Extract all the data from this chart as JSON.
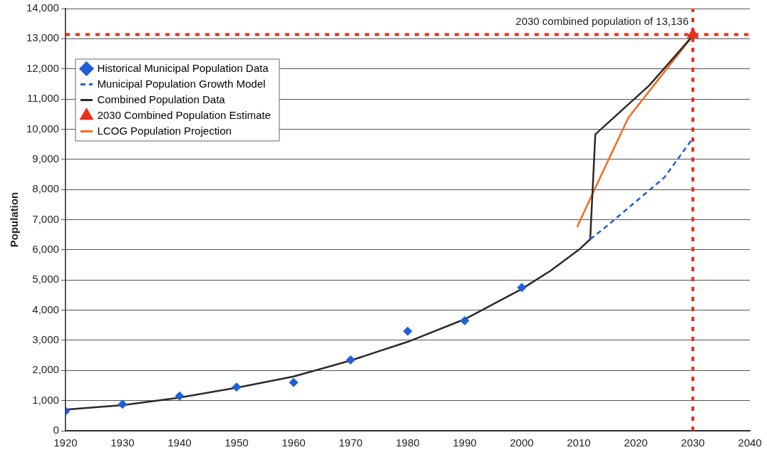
{
  "chart_data": {
    "type": "line",
    "ylabel": "Population",
    "xlim": [
      1920,
      2040
    ],
    "xticks": [
      1920,
      1930,
      1940,
      1950,
      1960,
      1970,
      1980,
      1990,
      2000,
      2010,
      2020,
      2030,
      2040
    ],
    "ylim": [
      0,
      14000
    ],
    "yticks": [
      0,
      {
        "value": 1000,
        "label": "1,000"
      },
      {
        "value": 2000,
        "label": "2,000"
      },
      {
        "value": 3000,
        "label": "3,000"
      },
      {
        "value": 4000,
        "label": "4,000"
      },
      {
        "value": 5000,
        "label": "5,000"
      },
      {
        "value": 6000,
        "label": "6,000"
      },
      {
        "value": 7000,
        "label": "7,000"
      },
      {
        "value": 8000,
        "label": "8,000"
      },
      {
        "value": 9000,
        "label": "9,000"
      },
      {
        "value": 10000,
        "label": "10,000"
      },
      {
        "value": 11000,
        "label": "11,000"
      },
      {
        "value": 12000,
        "label": "12,000"
      },
      {
        "value": 13000,
        "label": "13,000"
      },
      {
        "value": 14000,
        "label": "14,000"
      }
    ],
    "grid": "y",
    "legend": "top left",
    "series": [
      {
        "name": "Historical Municipal Population Data",
        "type": "scatter",
        "marker": "diamond",
        "color": "#1f5fd8",
        "x": [
          1920,
          1930,
          1940,
          1950,
          1960,
          1970,
          1980,
          1990,
          2000
        ],
        "values": [
          650,
          880,
          1150,
          1450,
          1600,
          2350,
          3300,
          3650,
          4750
        ]
      },
      {
        "name": "Municipal Population Growth Model",
        "type": "line",
        "line_style": "dashed",
        "marker": "none",
        "color": "#1f5fd8",
        "x": [
          2012,
          2015,
          2020,
          2025,
          2030
        ],
        "values": [
          6350,
          6800,
          7600,
          8400,
          9700
        ]
      },
      {
        "name": "Combined Population Data",
        "line_style": "solid",
        "marker": "none",
        "color": "#2a2a2a",
        "x": [
          1920,
          1930,
          1940,
          1950,
          1960,
          1970,
          1980,
          1990,
          2000,
          2005,
          2010,
          2012,
          2012.9,
          2022.4,
          2030
        ],
        "values": [
          700,
          850,
          1100,
          1430,
          1800,
          2330,
          2950,
          3700,
          4700,
          5300,
          6000,
          6350,
          9830,
          11460,
          13100
        ]
      },
      {
        "name": "2030 Combined Population Estimate",
        "type": "scatter",
        "marker": "triangle",
        "color": "#e8301c",
        "x": [
          2030
        ],
        "values": [
          13136
        ]
      },
      {
        "name": "LCOG Population Projection",
        "type": "line",
        "line_style": "solid",
        "marker": "none",
        "color": "#f06a20",
        "x": [
          2009.7,
          2013,
          2018.7,
          2030
        ],
        "values": [
          6750,
          8100,
          10380,
          13100
        ]
      }
    ],
    "ref_lines": [
      {
        "axis": "y",
        "value": 13136,
        "color": "#e8301c",
        "line_style": "dotted"
      },
      {
        "axis": "x",
        "value": 2030,
        "color": "#e8301c",
        "line_style": "dotted"
      }
    ],
    "annotations": [
      {
        "text": "2030 combined population of 13,136",
        "x": 2030,
        "y": 13136
      }
    ]
  }
}
